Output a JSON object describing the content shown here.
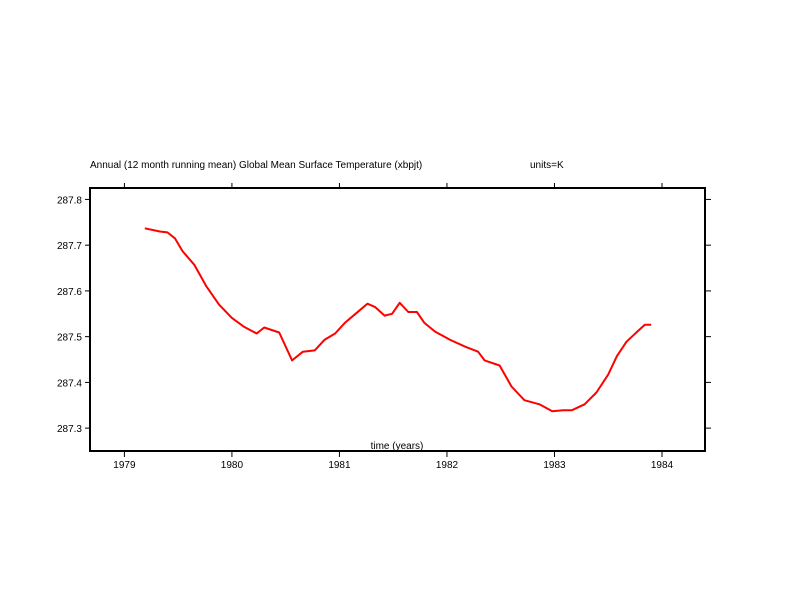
{
  "chart_data": {
    "type": "line",
    "title": "Annual (12 month running mean) Global Mean Surface Temperature (xbpjt)",
    "units_label": "units=K",
    "xlabel": "time (years)",
    "ylabel": "",
    "xlim": [
      1978.68,
      1984.4
    ],
    "ylim": [
      287.25,
      287.825
    ],
    "xticks": [
      1979,
      1980,
      1981,
      1982,
      1983,
      1984
    ],
    "xtick_labels": [
      "1979",
      "1980",
      "1981",
      "1982",
      "1983",
      "1984"
    ],
    "yticks": [
      287.3,
      287.4,
      287.5,
      287.6,
      287.7,
      287.8
    ],
    "ytick_labels": [
      "287.3",
      "287.4",
      "287.5",
      "287.6",
      "287.7",
      "287.8"
    ],
    "grid": false,
    "series": [
      {
        "name": "Global Mean Surface Temperature",
        "color": "#ff0000",
        "x": [
          1979.19,
          1979.33,
          1979.4,
          1979.47,
          1979.54,
          1979.65,
          1979.76,
          1979.88,
          1980.0,
          1980.11,
          1980.23,
          1980.3,
          1980.44,
          1980.56,
          1980.66,
          1980.77,
          1980.86,
          1980.96,
          1981.05,
          1981.14,
          1981.26,
          1981.33,
          1981.42,
          1981.49,
          1981.56,
          1981.64,
          1981.72,
          1981.79,
          1981.89,
          1982.03,
          1982.17,
          1982.29,
          1982.35,
          1982.49,
          1982.6,
          1982.72,
          1982.86,
          1982.98,
          1983.08,
          1983.16,
          1983.28,
          1983.39,
          1983.5,
          1983.58,
          1983.67,
          1983.77,
          1983.84,
          1983.9
        ],
        "y": [
          287.737,
          287.73,
          287.728,
          287.715,
          287.687,
          287.657,
          287.611,
          287.57,
          287.541,
          287.522,
          287.507,
          287.52,
          287.509,
          287.448,
          287.467,
          287.47,
          287.493,
          287.507,
          287.53,
          287.548,
          287.572,
          287.565,
          287.546,
          287.55,
          287.574,
          287.554,
          287.554,
          287.53,
          287.511,
          287.493,
          287.478,
          287.467,
          287.448,
          287.437,
          287.391,
          287.361,
          287.352,
          287.337,
          287.339,
          287.339,
          287.352,
          287.378,
          287.417,
          287.457,
          287.489,
          287.511,
          287.526,
          287.526
        ]
      }
    ]
  }
}
